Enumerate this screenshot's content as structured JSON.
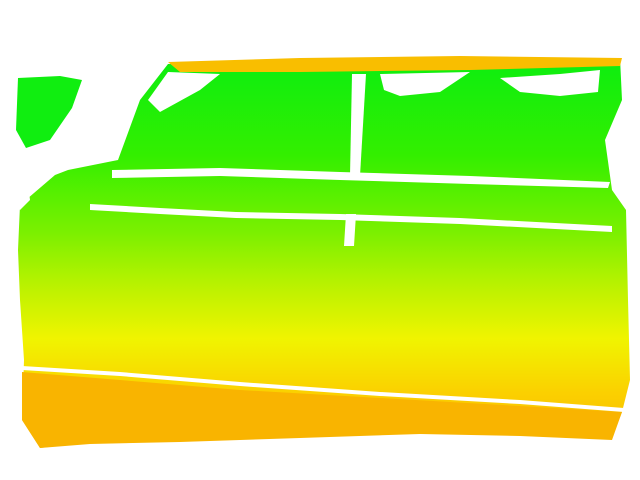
{
  "colors": {
    "background": "#ffffff",
    "green_bright": "#0cee10",
    "green": "#33ef00",
    "lime": "#7cf000",
    "yellow_green": "#b8f200",
    "yellow": "#f0f400",
    "orange_yellow": "#fbd000",
    "orange": "#f8b800",
    "gap": "#ffffff"
  }
}
